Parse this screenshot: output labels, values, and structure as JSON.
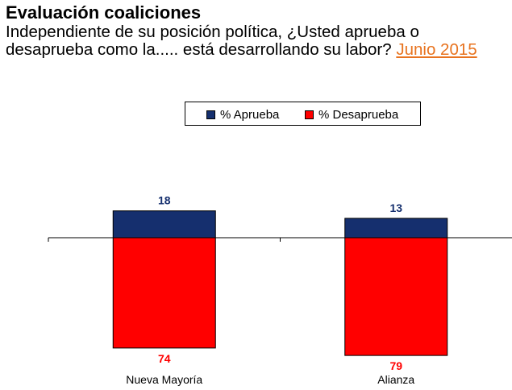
{
  "header": {
    "title": "Evaluación coaliciones",
    "question": "Independiente de su posición política, ¿Usted aprueba o desaprueba como la..... está desarrollando su labor?",
    "date_label": "Junio 2015"
  },
  "colors": {
    "aprueba": "#152F6E",
    "desaprueba": "#FF0000",
    "date_link": "#E8731F"
  },
  "chart_data": {
    "type": "bar",
    "stacked": "diverging",
    "title": "Evaluación coaliciones",
    "categories": [
      "Nueva Mayoría",
      "Alianza"
    ],
    "series": [
      {
        "name": "% Aprueba",
        "values": [
          18,
          13
        ],
        "direction": "up"
      },
      {
        "name": "% Desaprueba",
        "values": [
          74,
          79
        ],
        "direction": "down"
      }
    ],
    "legend_position": "top-center",
    "grid": false,
    "xlabel": "",
    "ylabel": ""
  }
}
